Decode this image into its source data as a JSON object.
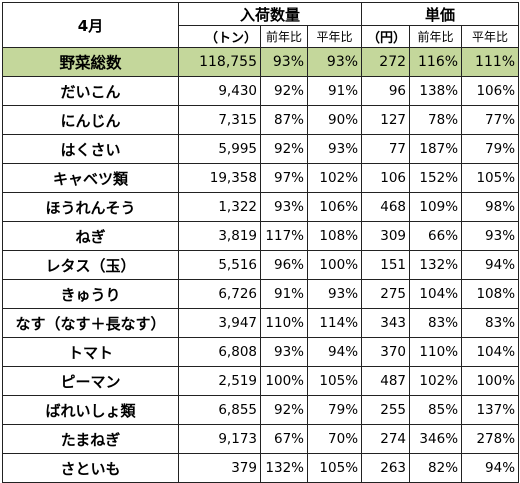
{
  "header": {
    "month": "4月",
    "volume_group": "入荷数量",
    "price_group": "単価",
    "volume_unit": "（トン）",
    "price_unit": "（円）",
    "yoy": "前年比",
    "avg": "平年比"
  },
  "total": {
    "name": "野菜総数",
    "volume": "118,755",
    "vol_yoy": "93%",
    "vol_avg": "93%",
    "price": "272",
    "price_yoy": "116%",
    "price_avg": "111%"
  },
  "rows": [
    {
      "name": "だいこん",
      "volume": "9,430",
      "vol_yoy": "92%",
      "vol_avg": "91%",
      "price": "96",
      "price_yoy": "138%",
      "price_avg": "106%"
    },
    {
      "name": "にんじん",
      "volume": "7,315",
      "vol_yoy": "87%",
      "vol_avg": "90%",
      "price": "127",
      "price_yoy": "78%",
      "price_avg": "77%"
    },
    {
      "name": "はくさい",
      "volume": "5,995",
      "vol_yoy": "92%",
      "vol_avg": "93%",
      "price": "77",
      "price_yoy": "187%",
      "price_avg": "79%"
    },
    {
      "name": "キャベツ類",
      "volume": "19,358",
      "vol_yoy": "97%",
      "vol_avg": "102%",
      "price": "106",
      "price_yoy": "152%",
      "price_avg": "105%"
    },
    {
      "name": "ほうれんそう",
      "volume": "1,322",
      "vol_yoy": "93%",
      "vol_avg": "106%",
      "price": "468",
      "price_yoy": "109%",
      "price_avg": "98%"
    },
    {
      "name": "ねぎ",
      "volume": "3,819",
      "vol_yoy": "117%",
      "vol_avg": "108%",
      "price": "309",
      "price_yoy": "66%",
      "price_avg": "93%"
    },
    {
      "name": "レタス（玉）",
      "volume": "5,516",
      "vol_yoy": "96%",
      "vol_avg": "100%",
      "price": "151",
      "price_yoy": "132%",
      "price_avg": "94%"
    },
    {
      "name": "きゅうり",
      "volume": "6,726",
      "vol_yoy": "91%",
      "vol_avg": "93%",
      "price": "275",
      "price_yoy": "104%",
      "price_avg": "108%"
    },
    {
      "name": "なす（なす＋長なす）",
      "volume": "3,947",
      "vol_yoy": "110%",
      "vol_avg": "114%",
      "price": "343",
      "price_yoy": "83%",
      "price_avg": "83%"
    },
    {
      "name": "トマト",
      "volume": "6,808",
      "vol_yoy": "93%",
      "vol_avg": "94%",
      "price": "370",
      "price_yoy": "110%",
      "price_avg": "104%"
    },
    {
      "name": "ピーマン",
      "volume": "2,519",
      "vol_yoy": "100%",
      "vol_avg": "105%",
      "price": "487",
      "price_yoy": "102%",
      "price_avg": "100%"
    },
    {
      "name": "ばれいしょ類",
      "volume": "6,855",
      "vol_yoy": "92%",
      "vol_avg": "79%",
      "price": "255",
      "price_yoy": "85%",
      "price_avg": "137%"
    },
    {
      "name": "たまねぎ",
      "volume": "9,173",
      "vol_yoy": "67%",
      "vol_avg": "70%",
      "price": "274",
      "price_yoy": "346%",
      "price_avg": "278%"
    },
    {
      "name": "さといも",
      "volume": "379",
      "vol_yoy": "132%",
      "vol_avg": "105%",
      "price": "263",
      "price_yoy": "82%",
      "price_avg": "94%"
    }
  ]
}
